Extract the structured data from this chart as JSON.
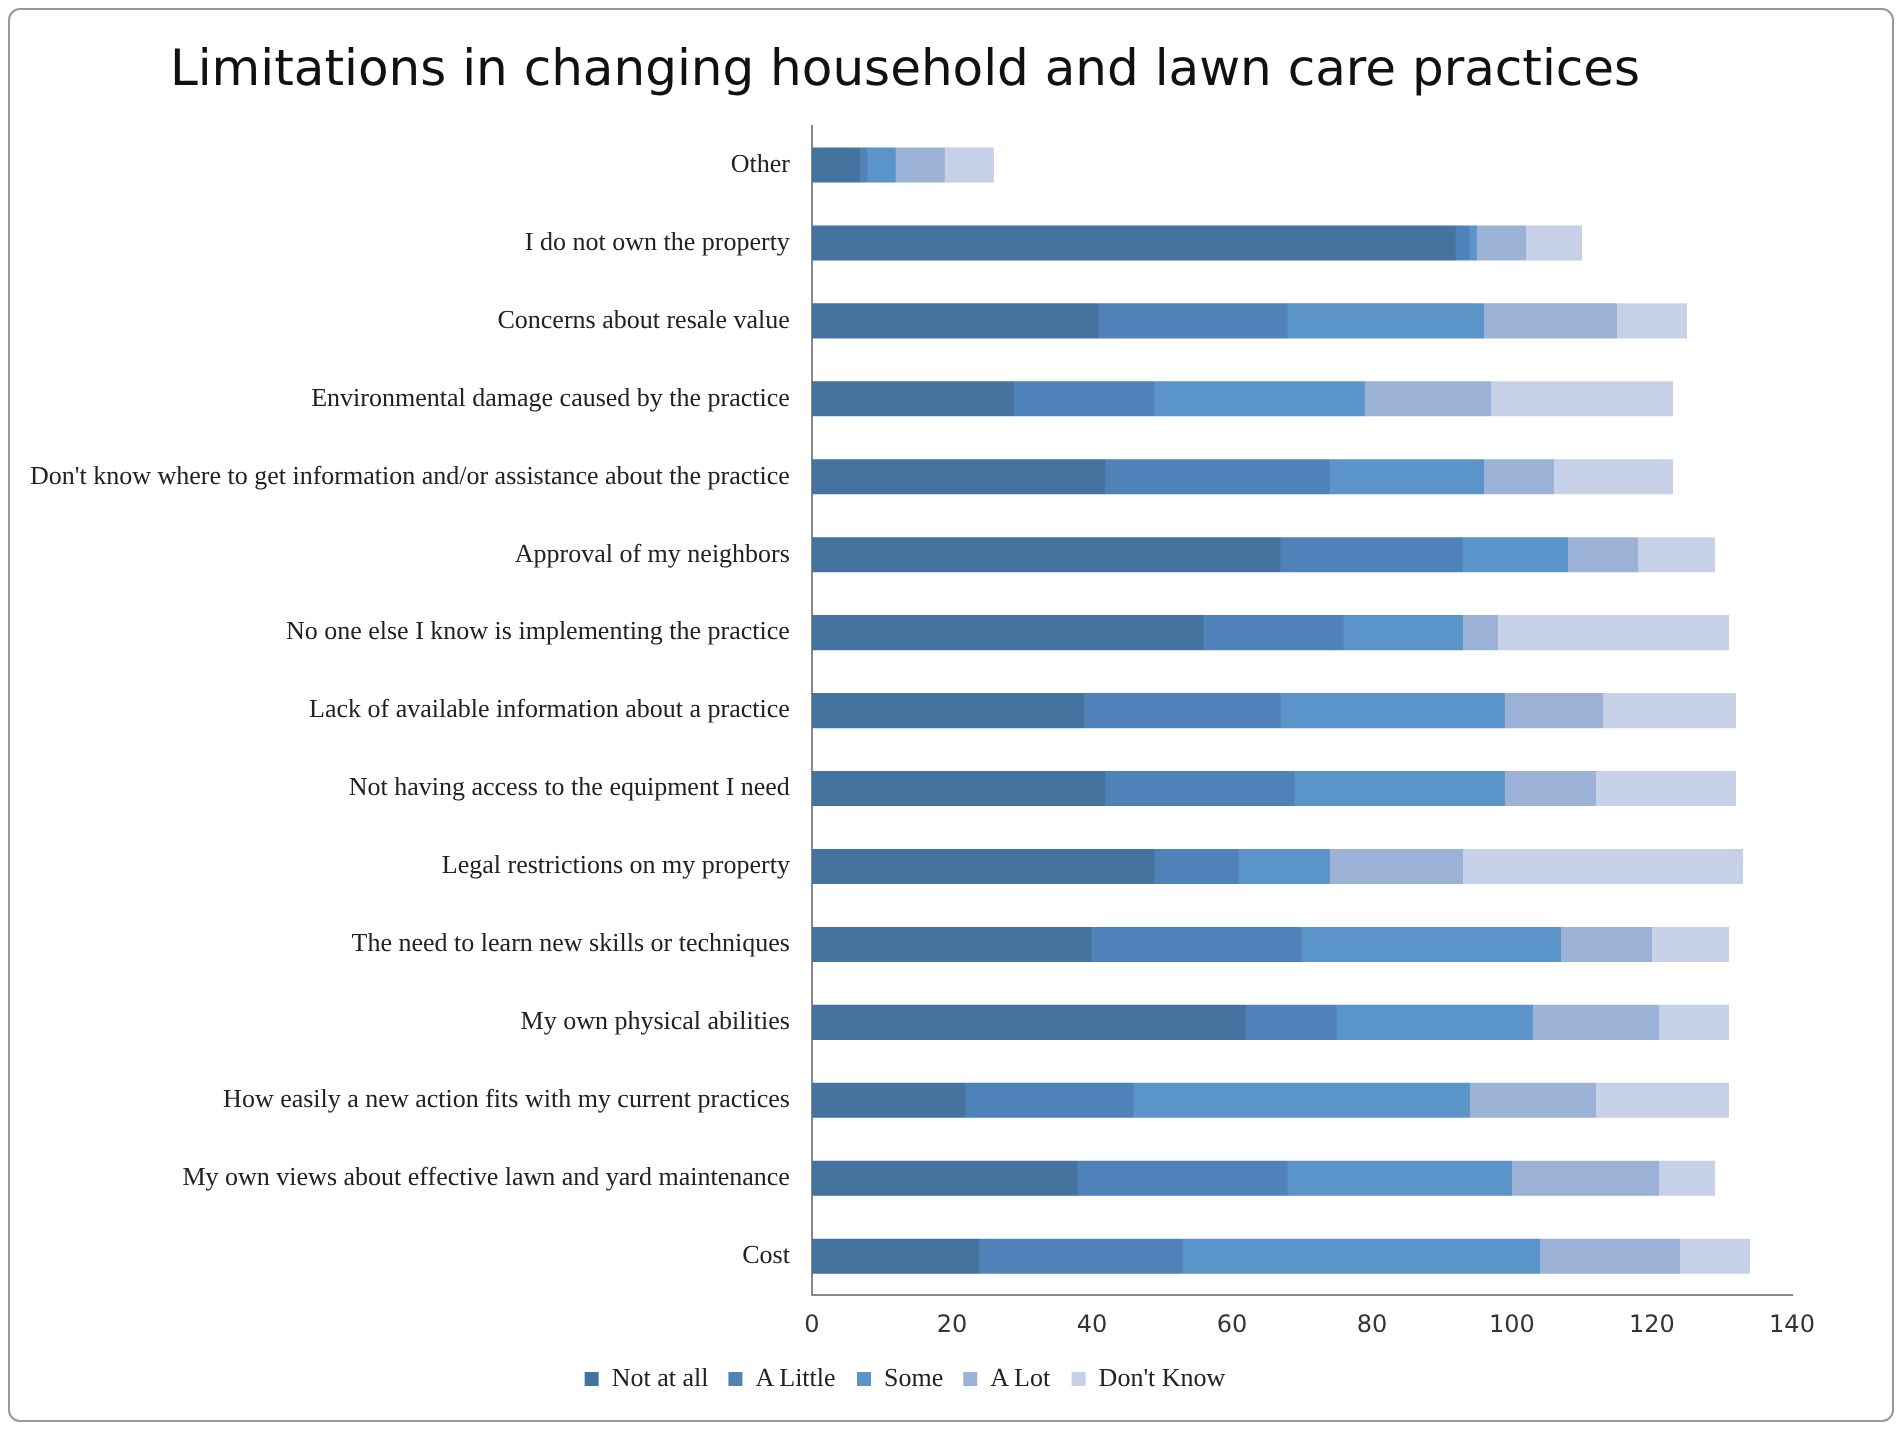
{
  "chart_data": {
    "type": "bar",
    "orientation": "horizontal",
    "stacked": true,
    "title": "Limitations in changing household and lawn care practices",
    "categories": [
      "Other",
      "I do not own the property",
      "Concerns about resale value",
      "Environmental damage caused by the practice",
      "Don't know where to get information and/or assistance about the practice",
      "Approval of my neighbors",
      "No one else I know is implementing the practice",
      "Lack of available information about a practice",
      "Not having access to the equipment I need",
      "Legal restrictions on my property",
      "The need to learn new skills or techniques",
      "My own physical abilities",
      "How easily a new action fits with my current practices",
      "My own views about effective lawn and yard maintenance",
      "Cost"
    ],
    "series": [
      {
        "name": "Not at all",
        "color": "#44739f",
        "values": [
          7,
          92,
          41,
          29,
          42,
          67,
          56,
          39,
          42,
          49,
          40,
          62,
          22,
          38,
          24
        ]
      },
      {
        "name": "A Little",
        "color": "#4f82b8",
        "values": [
          1,
          2,
          27,
          20,
          32,
          26,
          20,
          28,
          27,
          12,
          30,
          13,
          24,
          30,
          29
        ]
      },
      {
        "name": "Some",
        "color": "#5b94c9",
        "values": [
          4,
          1,
          28,
          30,
          22,
          15,
          17,
          32,
          30,
          13,
          37,
          28,
          48,
          32,
          51
        ]
      },
      {
        "name": "A Lot",
        "color": "#9cb1d6",
        "values": [
          7,
          7,
          19,
          18,
          10,
          10,
          5,
          14,
          13,
          19,
          13,
          18,
          18,
          21,
          20
        ]
      },
      {
        "name": "Don't Know",
        "color": "#c6d1e7",
        "values": [
          7,
          8,
          10,
          26,
          17,
          11,
          33,
          19,
          20,
          40,
          11,
          10,
          19,
          8,
          10
        ]
      }
    ],
    "xlim": [
      0,
      140
    ],
    "xticks": [
      0,
      20,
      40,
      60,
      80,
      100,
      120,
      140
    ],
    "grid": false,
    "legend": "bottom"
  }
}
